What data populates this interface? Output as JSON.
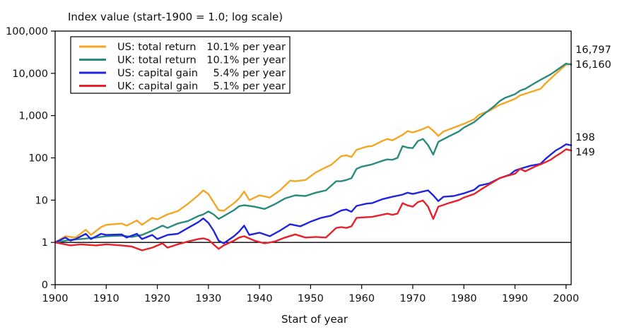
{
  "chart_data": {
    "type": "line",
    "title": "Index value (start-1900 = 1.0; log scale)",
    "xlabel": "Start of year",
    "ylabel": "",
    "yscale": "log",
    "xlim": [
      1900,
      2001
    ],
    "ylim": [
      0,
      100000
    ],
    "x_ticks": [
      "1900",
      "1910",
      "1920",
      "1930",
      "1940",
      "1950",
      "1960",
      "1970",
      "1980",
      "1990",
      "2000"
    ],
    "y_ticks": [
      {
        "label": "100,000",
        "value": 100000
      },
      {
        "label": "10,000",
        "value": 10000
      },
      {
        "label": "1,000",
        "value": 1000
      },
      {
        "label": "100",
        "value": 100
      },
      {
        "label": "10",
        "value": 10
      },
      {
        "label": "1",
        "value": 1
      },
      {
        "label": "0",
        "value": 0
      }
    ],
    "reference_line": 1,
    "legend_position": "top-left",
    "series": [
      {
        "name": "US: total return",
        "rate": "10.1% per year",
        "color": "#F5A623",
        "end_label": "16,797",
        "points": [
          [
            1900,
            1.0
          ],
          [
            1902,
            1.4
          ],
          [
            1904,
            1.3
          ],
          [
            1906,
            2.0
          ],
          [
            1907,
            1.5
          ],
          [
            1909,
            2.3
          ],
          [
            1910,
            2.6
          ],
          [
            1913,
            2.8
          ],
          [
            1914,
            2.5
          ],
          [
            1916,
            3.3
          ],
          [
            1917,
            2.6
          ],
          [
            1919,
            3.8
          ],
          [
            1920,
            3.5
          ],
          [
            1922,
            4.6
          ],
          [
            1924,
            5.5
          ],
          [
            1926,
            8.2
          ],
          [
            1928,
            13
          ],
          [
            1929,
            17
          ],
          [
            1930,
            14
          ],
          [
            1931,
            9.0
          ],
          [
            1932,
            5.8
          ],
          [
            1933,
            5.6
          ],
          [
            1935,
            8.5
          ],
          [
            1936,
            11
          ],
          [
            1937,
            16
          ],
          [
            1938,
            10
          ],
          [
            1940,
            13
          ],
          [
            1942,
            11.5
          ],
          [
            1944,
            17
          ],
          [
            1946,
            29
          ],
          [
            1947,
            28
          ],
          [
            1949,
            30
          ],
          [
            1951,
            45
          ],
          [
            1953,
            60
          ],
          [
            1954,
            68
          ],
          [
            1956,
            110
          ],
          [
            1957,
            115
          ],
          [
            1958,
            105
          ],
          [
            1959,
            155
          ],
          [
            1961,
            185
          ],
          [
            1962,
            190
          ],
          [
            1964,
            250
          ],
          [
            1965,
            280
          ],
          [
            1966,
            260
          ],
          [
            1968,
            350
          ],
          [
            1969,
            430
          ],
          [
            1970,
            400
          ],
          [
            1972,
            480
          ],
          [
            1973,
            550
          ],
          [
            1974,
            440
          ],
          [
            1975,
            330
          ],
          [
            1976,
            420
          ],
          [
            1978,
            520
          ],
          [
            1980,
            640
          ],
          [
            1982,
            820
          ],
          [
            1983,
            1050
          ],
          [
            1985,
            1300
          ],
          [
            1987,
            1800
          ],
          [
            1988,
            2000
          ],
          [
            1990,
            2500
          ],
          [
            1991,
            3000
          ],
          [
            1993,
            3600
          ],
          [
            1995,
            4300
          ],
          [
            1996,
            5800
          ],
          [
            1997,
            7500
          ],
          [
            1998,
            9800
          ],
          [
            1999,
            12500
          ],
          [
            2000,
            16000
          ],
          [
            2001,
            16797
          ]
        ]
      },
      {
        "name": "UK: total return",
        "rate": "10.1% per year",
        "color": "#2A8A7E",
        "end_label": "16,160",
        "points": [
          [
            1900,
            1.0
          ],
          [
            1903,
            1.15
          ],
          [
            1905,
            1.2
          ],
          [
            1908,
            1.3
          ],
          [
            1910,
            1.4
          ],
          [
            1913,
            1.45
          ],
          [
            1915,
            1.35
          ],
          [
            1917,
            1.5
          ],
          [
            1919,
            1.9
          ],
          [
            1921,
            2.5
          ],
          [
            1922,
            2.2
          ],
          [
            1924,
            2.8
          ],
          [
            1926,
            3.2
          ],
          [
            1928,
            4.2
          ],
          [
            1929,
            4.6
          ],
          [
            1930,
            5.4
          ],
          [
            1931,
            4.6
          ],
          [
            1932,
            3.6
          ],
          [
            1933,
            4.2
          ],
          [
            1935,
            5.8
          ],
          [
            1936,
            7.2
          ],
          [
            1937,
            7.6
          ],
          [
            1939,
            7.0
          ],
          [
            1941,
            6.2
          ],
          [
            1943,
            8.0
          ],
          [
            1945,
            11
          ],
          [
            1947,
            13
          ],
          [
            1949,
            12.5
          ],
          [
            1951,
            15
          ],
          [
            1953,
            17
          ],
          [
            1955,
            28
          ],
          [
            1956,
            28
          ],
          [
            1957,
            30
          ],
          [
            1958,
            33
          ],
          [
            1959,
            55
          ],
          [
            1960,
            62
          ],
          [
            1962,
            70
          ],
          [
            1964,
            85
          ],
          [
            1965,
            92
          ],
          [
            1966,
            90
          ],
          [
            1967,
            100
          ],
          [
            1968,
            190
          ],
          [
            1969,
            175
          ],
          [
            1970,
            170
          ],
          [
            1971,
            250
          ],
          [
            1972,
            280
          ],
          [
            1973,
            200
          ],
          [
            1974,
            120
          ],
          [
            1975,
            240
          ],
          [
            1977,
            320
          ],
          [
            1979,
            420
          ],
          [
            1980,
            520
          ],
          [
            1982,
            700
          ],
          [
            1984,
            1100
          ],
          [
            1986,
            1700
          ],
          [
            1987,
            2200
          ],
          [
            1988,
            2600
          ],
          [
            1990,
            3200
          ],
          [
            1991,
            3900
          ],
          [
            1992,
            4300
          ],
          [
            1994,
            6000
          ],
          [
            1995,
            7000
          ],
          [
            1997,
            9500
          ],
          [
            1998,
            11500
          ],
          [
            1999,
            14000
          ],
          [
            2000,
            17000
          ],
          [
            2001,
            16160
          ]
        ]
      },
      {
        "name": "US: capital gain",
        "rate": "5.4% per year",
        "color": "#1F24E0",
        "end_label": "198",
        "points": [
          [
            1900,
            1.0
          ],
          [
            1902,
            1.3
          ],
          [
            1903,
            1.1
          ],
          [
            1904,
            1.2
          ],
          [
            1906,
            1.6
          ],
          [
            1907,
            1.2
          ],
          [
            1909,
            1.6
          ],
          [
            1910,
            1.5
          ],
          [
            1913,
            1.55
          ],
          [
            1914,
            1.3
          ],
          [
            1916,
            1.6
          ],
          [
            1917,
            1.2
          ],
          [
            1919,
            1.5
          ],
          [
            1920,
            1.2
          ],
          [
            1922,
            1.5
          ],
          [
            1924,
            1.6
          ],
          [
            1926,
            2.2
          ],
          [
            1928,
            3.0
          ],
          [
            1929,
            3.7
          ],
          [
            1930,
            2.9
          ],
          [
            1931,
            1.9
          ],
          [
            1932,
            1.1
          ],
          [
            1933,
            0.95
          ],
          [
            1935,
            1.4
          ],
          [
            1936,
            1.8
          ],
          [
            1937,
            2.5
          ],
          [
            1938,
            1.5
          ],
          [
            1940,
            1.7
          ],
          [
            1942,
            1.4
          ],
          [
            1944,
            1.9
          ],
          [
            1946,
            2.7
          ],
          [
            1948,
            2.4
          ],
          [
            1950,
            3.1
          ],
          [
            1952,
            3.8
          ],
          [
            1954,
            4.3
          ],
          [
            1956,
            5.7
          ],
          [
            1957,
            6.0
          ],
          [
            1958,
            5.3
          ],
          [
            1959,
            7.3
          ],
          [
            1961,
            8.3
          ],
          [
            1962,
            8.5
          ],
          [
            1964,
            10.5
          ],
          [
            1966,
            12
          ],
          [
            1968,
            13.5
          ],
          [
            1969,
            15
          ],
          [
            1970,
            14
          ],
          [
            1972,
            16
          ],
          [
            1973,
            17
          ],
          [
            1974,
            13
          ],
          [
            1975,
            9.5
          ],
          [
            1976,
            12
          ],
          [
            1978,
            12.5
          ],
          [
            1980,
            14.5
          ],
          [
            1982,
            17.5
          ],
          [
            1983,
            22
          ],
          [
            1985,
            25
          ],
          [
            1987,
            33
          ],
          [
            1989,
            40
          ],
          [
            1990,
            50
          ],
          [
            1991,
            55
          ],
          [
            1993,
            65
          ],
          [
            1995,
            72
          ],
          [
            1996,
            95
          ],
          [
            1997,
            120
          ],
          [
            1998,
            150
          ],
          [
            1999,
            175
          ],
          [
            2000,
            210
          ],
          [
            2001,
            198
          ]
        ]
      },
      {
        "name": "UK: capital gain",
        "rate": "5.1% per year",
        "color": "#E8202A",
        "end_label": "149",
        "points": [
          [
            1900,
            1.0
          ],
          [
            1903,
            0.85
          ],
          [
            1905,
            0.9
          ],
          [
            1908,
            0.85
          ],
          [
            1910,
            0.9
          ],
          [
            1913,
            0.85
          ],
          [
            1915,
            0.8
          ],
          [
            1917,
            0.65
          ],
          [
            1919,
            0.75
          ],
          [
            1921,
            0.95
          ],
          [
            1922,
            0.75
          ],
          [
            1924,
            0.9
          ],
          [
            1926,
            1.05
          ],
          [
            1928,
            1.2
          ],
          [
            1929,
            1.25
          ],
          [
            1930,
            1.15
          ],
          [
            1931,
            0.9
          ],
          [
            1932,
            0.7
          ],
          [
            1933,
            0.85
          ],
          [
            1935,
            1.1
          ],
          [
            1936,
            1.3
          ],
          [
            1937,
            1.4
          ],
          [
            1939,
            1.1
          ],
          [
            1941,
            0.95
          ],
          [
            1943,
            1.05
          ],
          [
            1945,
            1.3
          ],
          [
            1947,
            1.55
          ],
          [
            1949,
            1.3
          ],
          [
            1951,
            1.35
          ],
          [
            1953,
            1.3
          ],
          [
            1955,
            2.2
          ],
          [
            1956,
            2.3
          ],
          [
            1957,
            2.2
          ],
          [
            1958,
            2.4
          ],
          [
            1959,
            3.8
          ],
          [
            1960,
            3.9
          ],
          [
            1962,
            4.0
          ],
          [
            1964,
            4.5
          ],
          [
            1965,
            4.8
          ],
          [
            1966,
            4.5
          ],
          [
            1967,
            4.8
          ],
          [
            1968,
            8.5
          ],
          [
            1969,
            7.5
          ],
          [
            1970,
            7.0
          ],
          [
            1971,
            9.0
          ],
          [
            1972,
            9.8
          ],
          [
            1973,
            7.0
          ],
          [
            1974,
            3.6
          ],
          [
            1975,
            7.0
          ],
          [
            1977,
            8.5
          ],
          [
            1979,
            10
          ],
          [
            1980,
            11.5
          ],
          [
            1982,
            14
          ],
          [
            1984,
            20
          ],
          [
            1986,
            28
          ],
          [
            1987,
            33
          ],
          [
            1988,
            36
          ],
          [
            1990,
            42
          ],
          [
            1991,
            55
          ],
          [
            1992,
            48
          ],
          [
            1994,
            63
          ],
          [
            1995,
            70
          ],
          [
            1997,
            90
          ],
          [
            1998,
            110
          ],
          [
            1999,
            130
          ],
          [
            2000,
            160
          ],
          [
            2001,
            149
          ]
        ]
      }
    ]
  }
}
